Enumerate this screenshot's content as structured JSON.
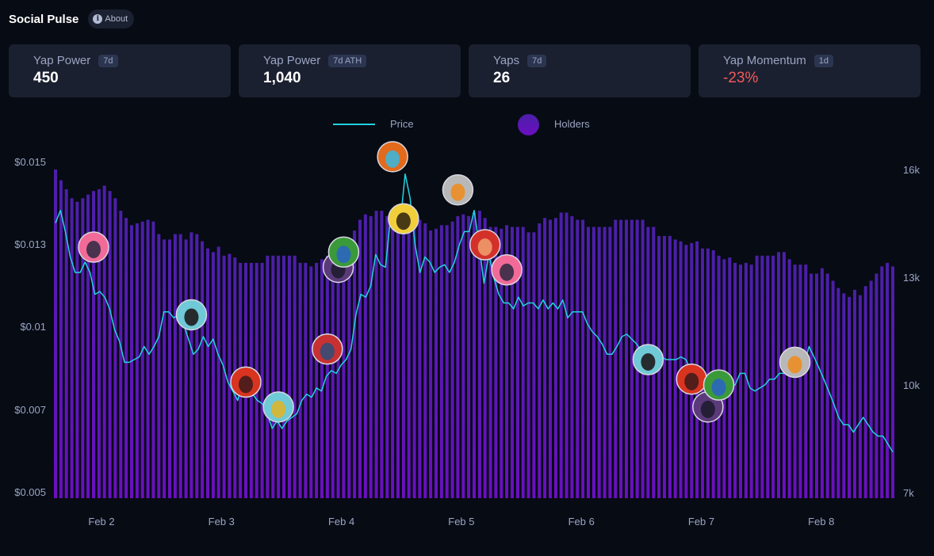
{
  "header": {
    "title": "Social Pulse",
    "about_label": "About",
    "about_icon": "info-icon"
  },
  "cards": [
    {
      "label": "Yap Power",
      "badge": "7d",
      "value": "450",
      "tone": "neutral"
    },
    {
      "label": "Yap Power",
      "badge": "7d ATH",
      "value": "1,040",
      "tone": "neutral"
    },
    {
      "label": "Yaps",
      "badge": "7d",
      "value": "26",
      "tone": "neutral"
    },
    {
      "label": "Yap Momentum",
      "badge": "1d",
      "value": "-23%",
      "tone": "negative"
    }
  ],
  "colors": {
    "price_line": "#22d3e0",
    "holders_bar_top": "#4b1fa8",
    "holders_bar_bottom": "#6a0fc0",
    "negative": "#f25a5a"
  },
  "chart_data": {
    "type": "bar+line",
    "legend": [
      {
        "name": "Price",
        "kind": "line"
      },
      {
        "name": "Holders",
        "kind": "bar"
      }
    ],
    "legend_placement": "top-center",
    "x_ticks": [
      "Feb 2",
      "Feb 3",
      "Feb 4",
      "Feb 5",
      "Feb 6",
      "Feb 7",
      "Feb 8"
    ],
    "x_range_days": [
      1.6,
      8.6
    ],
    "left_axis": {
      "label": "Price",
      "ticks": [
        "$0.005",
        "$0.007",
        "$0.01",
        "$0.013",
        "$0.015"
      ],
      "tick_values": [
        0.005,
        0.007,
        0.01,
        0.013,
        0.015
      ],
      "scale": "log",
      "range": [
        0.005,
        0.0155
      ]
    },
    "right_axis": {
      "label": "Holders",
      "ticks": [
        "7k",
        "10k",
        "13k",
        "16k"
      ],
      "tick_values": [
        7000,
        10000,
        13000,
        16000
      ],
      "range": [
        7000,
        16200
      ]
    },
    "grid": false,
    "holders": [
      16000,
      15700,
      15450,
      15200,
      15100,
      15200,
      15300,
      15400,
      15450,
      15550,
      15400,
      15200,
      14850,
      14650,
      14450,
      14500,
      14550,
      14600,
      14550,
      14200,
      14050,
      14050,
      14200,
      14200,
      14050,
      14250,
      14200,
      14000,
      13800,
      13700,
      13850,
      13600,
      13650,
      13550,
      13400,
      13400,
      13400,
      13400,
      13400,
      13600,
      13600,
      13600,
      13600,
      13600,
      13600,
      13400,
      13400,
      13300,
      13400,
      13500,
      13600,
      13700,
      13800,
      13900,
      14050,
      14300,
      14600,
      14750,
      14700,
      14850,
      14850,
      14700,
      14750,
      14550,
      14600,
      14400,
      14350,
      14600,
      14500,
      14300,
      14350,
      14450,
      14450,
      14550,
      14700,
      14750,
      14700,
      14800,
      14850,
      14650,
      14400,
      14400,
      14350,
      14450,
      14400,
      14400,
      14400,
      14250,
      14250,
      14500,
      14650,
      14600,
      14650,
      14800,
      14800,
      14700,
      14600,
      14600,
      14400,
      14400,
      14400,
      14400,
      14400,
      14600,
      14600,
      14600,
      14600,
      14600,
      14600,
      14400,
      14400,
      14150,
      14150,
      14150,
      14050,
      14000,
      13900,
      13950,
      14000,
      13800,
      13800,
      13750,
      13600,
      13500,
      13550,
      13400,
      13350,
      13400,
      13350,
      13600,
      13600,
      13600,
      13600,
      13700,
      13700,
      13500,
      13350,
      13350,
      13350,
      13100,
      13100,
      13250,
      13100,
      12900,
      12700,
      12550,
      12450,
      12650,
      12500,
      12750,
      12900,
      13100,
      13300,
      13400,
      13300
    ],
    "price": [
      0.0135,
      0.0138,
      0.0133,
      0.0125,
      0.0119,
      0.0119,
      0.0123,
      0.0119,
      0.0111,
      0.0112,
      0.011,
      0.0106,
      0.0099,
      0.0094,
      0.0086,
      0.0086,
      0.0087,
      0.0088,
      0.0092,
      0.0089,
      0.0092,
      0.0096,
      0.0105,
      0.0105,
      0.0103,
      0.0104,
      0.0101,
      0.0095,
      0.0089,
      0.0091,
      0.0096,
      0.0092,
      0.0095,
      0.0089,
      0.0085,
      0.0079,
      0.0076,
      0.0073,
      0.0079,
      0.0076,
      0.0075,
      0.0073,
      0.0072,
      0.0069,
      0.0065,
      0.0067,
      0.0065,
      0.0067,
      0.0068,
      0.0069,
      0.0073,
      0.0075,
      0.0074,
      0.0077,
      0.0076,
      0.0081,
      0.0083,
      0.0082,
      0.0085,
      0.0087,
      0.0091,
      0.0104,
      0.0111,
      0.011,
      0.0114,
      0.0126,
      0.0122,
      0.0121,
      0.0136,
      0.0135,
      0.0135,
      0.0147,
      0.0141,
      0.013,
      0.0119,
      0.0125,
      0.0123,
      0.0119,
      0.0121,
      0.0122,
      0.0119,
      0.0123,
      0.013,
      0.0133,
      0.0133,
      0.0138,
      0.013,
      0.0115,
      0.0126,
      0.0117,
      0.0111,
      0.0108,
      0.0108,
      0.0106,
      0.011,
      0.0107,
      0.0108,
      0.0108,
      0.0106,
      0.0109,
      0.0106,
      0.0108,
      0.0106,
      0.0109,
      0.0103,
      0.0105,
      0.0105,
      0.0105,
      0.0101,
      0.0098,
      0.0096,
      0.0093,
      0.0089,
      0.0089,
      0.0092,
      0.0096,
      0.0097,
      0.0095,
      0.0093,
      0.009,
      0.0091,
      0.0089,
      0.009,
      0.0088,
      0.0087,
      0.0087,
      0.0087,
      0.0088,
      0.0087,
      0.0083,
      0.0081,
      0.0082,
      0.0081,
      0.0075,
      0.0075,
      0.0073,
      0.0075,
      0.0078,
      0.0078,
      0.0082,
      0.0082,
      0.0077,
      0.0076,
      0.0077,
      0.0078,
      0.008,
      0.008,
      0.0082,
      0.0082,
      0.0082,
      0.0085,
      0.0085,
      0.0085,
      0.0092,
      0.0088,
      0.0084,
      0.008,
      0.0076,
      0.0072,
      0.0068,
      0.0066,
      0.0066,
      0.0064,
      0.0066,
      0.0068,
      0.0066,
      0.0064,
      0.0063,
      0.0063,
      0.0061,
      0.0059
    ],
    "annotations": [
      {
        "type": "avatar",
        "name": "sunglasses-guy",
        "bar_index": 7,
        "price": 0.0129,
        "colors": [
          "#f26b98",
          "#2b2840"
        ]
      },
      {
        "type": "avatar",
        "name": "top-hat-punk",
        "bar_index": 25,
        "price": 0.0104,
        "colors": [
          "#6fc9d6",
          "#1a1010"
        ]
      },
      {
        "type": "avatar",
        "name": "red-anime",
        "bar_index": 35,
        "price": 0.0079,
        "colors": [
          "#d8341f",
          "#3b1a1a"
        ]
      },
      {
        "type": "avatar",
        "name": "gold-toad",
        "bar_index": 41,
        "price": 0.0071,
        "colors": [
          "#6fc9d6",
          "#e4b423"
        ]
      },
      {
        "type": "avatar",
        "name": "captain",
        "bar_index": 50,
        "price": 0.0091,
        "colors": [
          "#c73131",
          "#2b4d7a"
        ]
      },
      {
        "type": "avatar",
        "name": "armored-girl",
        "bar_index": 52,
        "price": 0.0121,
        "colors": [
          "#5b3a7a",
          "#1b1b2b"
        ]
      },
      {
        "type": "avatar",
        "name": "pepe",
        "bar_index": 53,
        "price": 0.0127,
        "colors": [
          "#3a9a3a",
          "#2a62c8"
        ]
      },
      {
        "type": "avatar",
        "name": "blue-alien",
        "bar_index": 62,
        "price": 0.0152,
        "colors": [
          "#e26a1c",
          "#35b9e4"
        ]
      },
      {
        "type": "avatar",
        "name": "yellow-face",
        "bar_index": 64,
        "price": 0.0136,
        "colors": [
          "#f1cf3a",
          "#2b2010"
        ]
      },
      {
        "type": "avatar",
        "name": "webcam-eye",
        "bar_index": 74,
        "price": 0.0143,
        "colors": [
          "#b8b8b8",
          "#f08a1a"
        ]
      },
      {
        "type": "avatar",
        "name": "knuckles",
        "bar_index": 79,
        "price": 0.013,
        "colors": [
          "#d4302a",
          "#f0a070"
        ]
      },
      {
        "type": "avatar",
        "name": "sunglasses-guy",
        "bar_index": 83,
        "price": 0.012,
        "colors": [
          "#f26b98",
          "#2b2840"
        ]
      },
      {
        "type": "avatar",
        "name": "top-hat-punk",
        "bar_index": 109,
        "price": 0.0087,
        "colors": [
          "#6fc9d6",
          "#1a1010"
        ]
      },
      {
        "type": "avatar",
        "name": "red-anime",
        "bar_index": 117,
        "price": 0.008,
        "colors": [
          "#d8341f",
          "#3b1a1a"
        ]
      },
      {
        "type": "avatar",
        "name": "armored-girl",
        "bar_index": 120,
        "price": 0.0071,
        "colors": [
          "#5b3a7a",
          "#1b1b2b"
        ]
      },
      {
        "type": "avatar",
        "name": "pepe",
        "bar_index": 122,
        "price": 0.0078,
        "colors": [
          "#3a9a3a",
          "#2a62c8"
        ]
      },
      {
        "type": "avatar",
        "name": "webcam-eye",
        "bar_index": 136,
        "price": 0.0086,
        "colors": [
          "#b8b8b8",
          "#f08a1a"
        ]
      }
    ]
  }
}
